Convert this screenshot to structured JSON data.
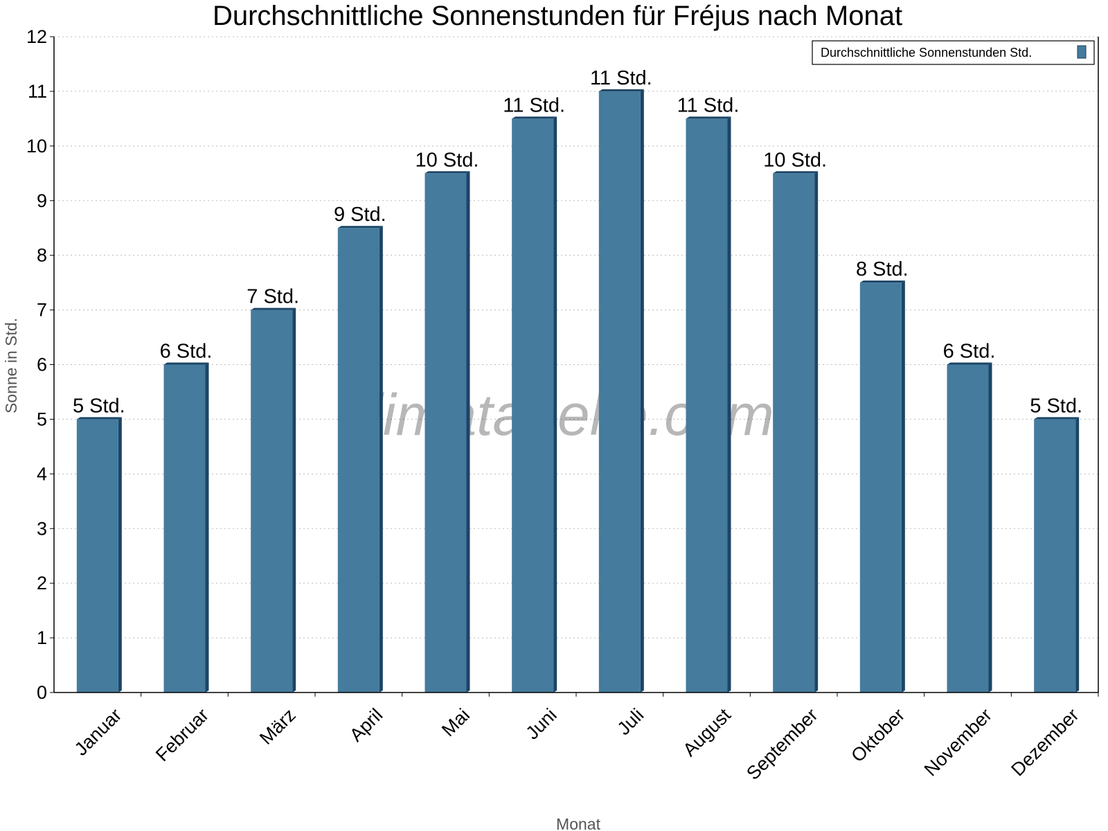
{
  "chart_data": {
    "type": "bar",
    "title": "Durchschnittliche Sonnenstunden für Fréjus nach Monat",
    "xlabel": "Monat",
    "ylabel": "Sonne in Std.",
    "ylim": [
      0,
      12
    ],
    "yticks": [
      "0",
      "1",
      "2",
      "3",
      "4",
      "5",
      "6",
      "7",
      "8",
      "9",
      "10",
      "11",
      "12"
    ],
    "grid": true,
    "legend_position": "top-right",
    "categories": [
      "Januar",
      "Februar",
      "März",
      "April",
      "Mai",
      "Juni",
      "Juli",
      "August",
      "September",
      "Oktober",
      "November",
      "Dezember"
    ],
    "series": [
      {
        "name": "Durchschnittliche Sonnenstunden Std.",
        "color": "#457b9d",
        "values": [
          5,
          6,
          7,
          8.5,
          9.5,
          10.5,
          11,
          10.5,
          9.5,
          7.5,
          6,
          5
        ],
        "data_labels": [
          "5 Std.",
          "6 Std.",
          "7 Std.",
          "9 Std.",
          "10 Std.",
          "11 Std.",
          "11 Std.",
          "11 Std.",
          "10 Std.",
          "8 Std.",
          "6 Std.",
          "5 Std."
        ]
      }
    ],
    "watermark": "klimatabelle.com"
  }
}
